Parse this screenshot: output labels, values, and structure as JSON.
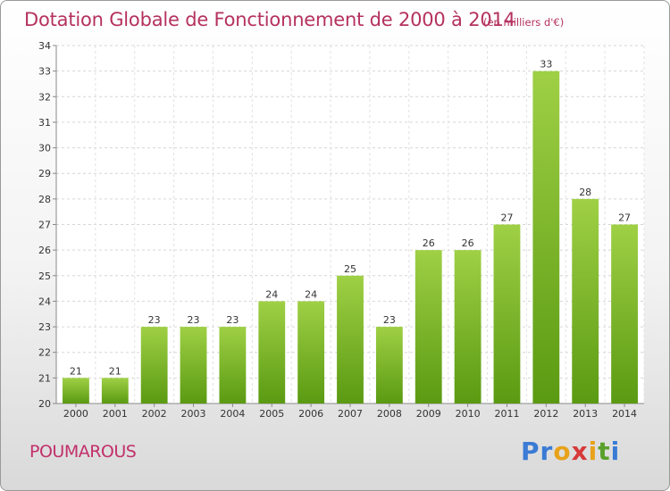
{
  "header": {
    "title": "Dotation Globale de Fonctionnement de 2000 à 2014",
    "unit": "(en milliers d'€)"
  },
  "footer": {
    "commune": "POUMAROUS",
    "logo": [
      "P",
      "r",
      "o",
      "x",
      "i",
      "t",
      "i"
    ]
  },
  "colors": {
    "title": "#b5315f",
    "bar_light": "#9fd045",
    "bar_dark": "#5a9a12",
    "logo": [
      "#3a7bd5",
      "#3a7bd5",
      "#e8a21a",
      "#d63a3a",
      "#e8a21a",
      "#5aa02c",
      "#3a7bd5"
    ]
  },
  "chart_data": {
    "type": "bar",
    "categories": [
      "2000",
      "2001",
      "2002",
      "2003",
      "2004",
      "2005",
      "2006",
      "2007",
      "2008",
      "2009",
      "2010",
      "2011",
      "2012",
      "2013",
      "2014"
    ],
    "values": [
      21,
      21,
      23,
      23,
      23,
      24,
      24,
      25,
      23,
      26,
      26,
      27,
      33,
      28,
      27
    ],
    "value_labels": [
      "21",
      "21",
      "23",
      "23",
      "23",
      "24",
      "24",
      "25",
      "23",
      "26",
      "26",
      "27",
      "33",
      "28",
      "27"
    ],
    "yticks": [
      "20",
      "21",
      "22",
      "23",
      "24",
      "25",
      "26",
      "27",
      "28",
      "29",
      "30",
      "31",
      "32",
      "33",
      "34"
    ],
    "ylim": [
      20,
      34
    ],
    "grid": true,
    "title": "Dotation Globale de Fonctionnement de 2000 à 2014",
    "xlabel": "",
    "ylabel": ""
  }
}
